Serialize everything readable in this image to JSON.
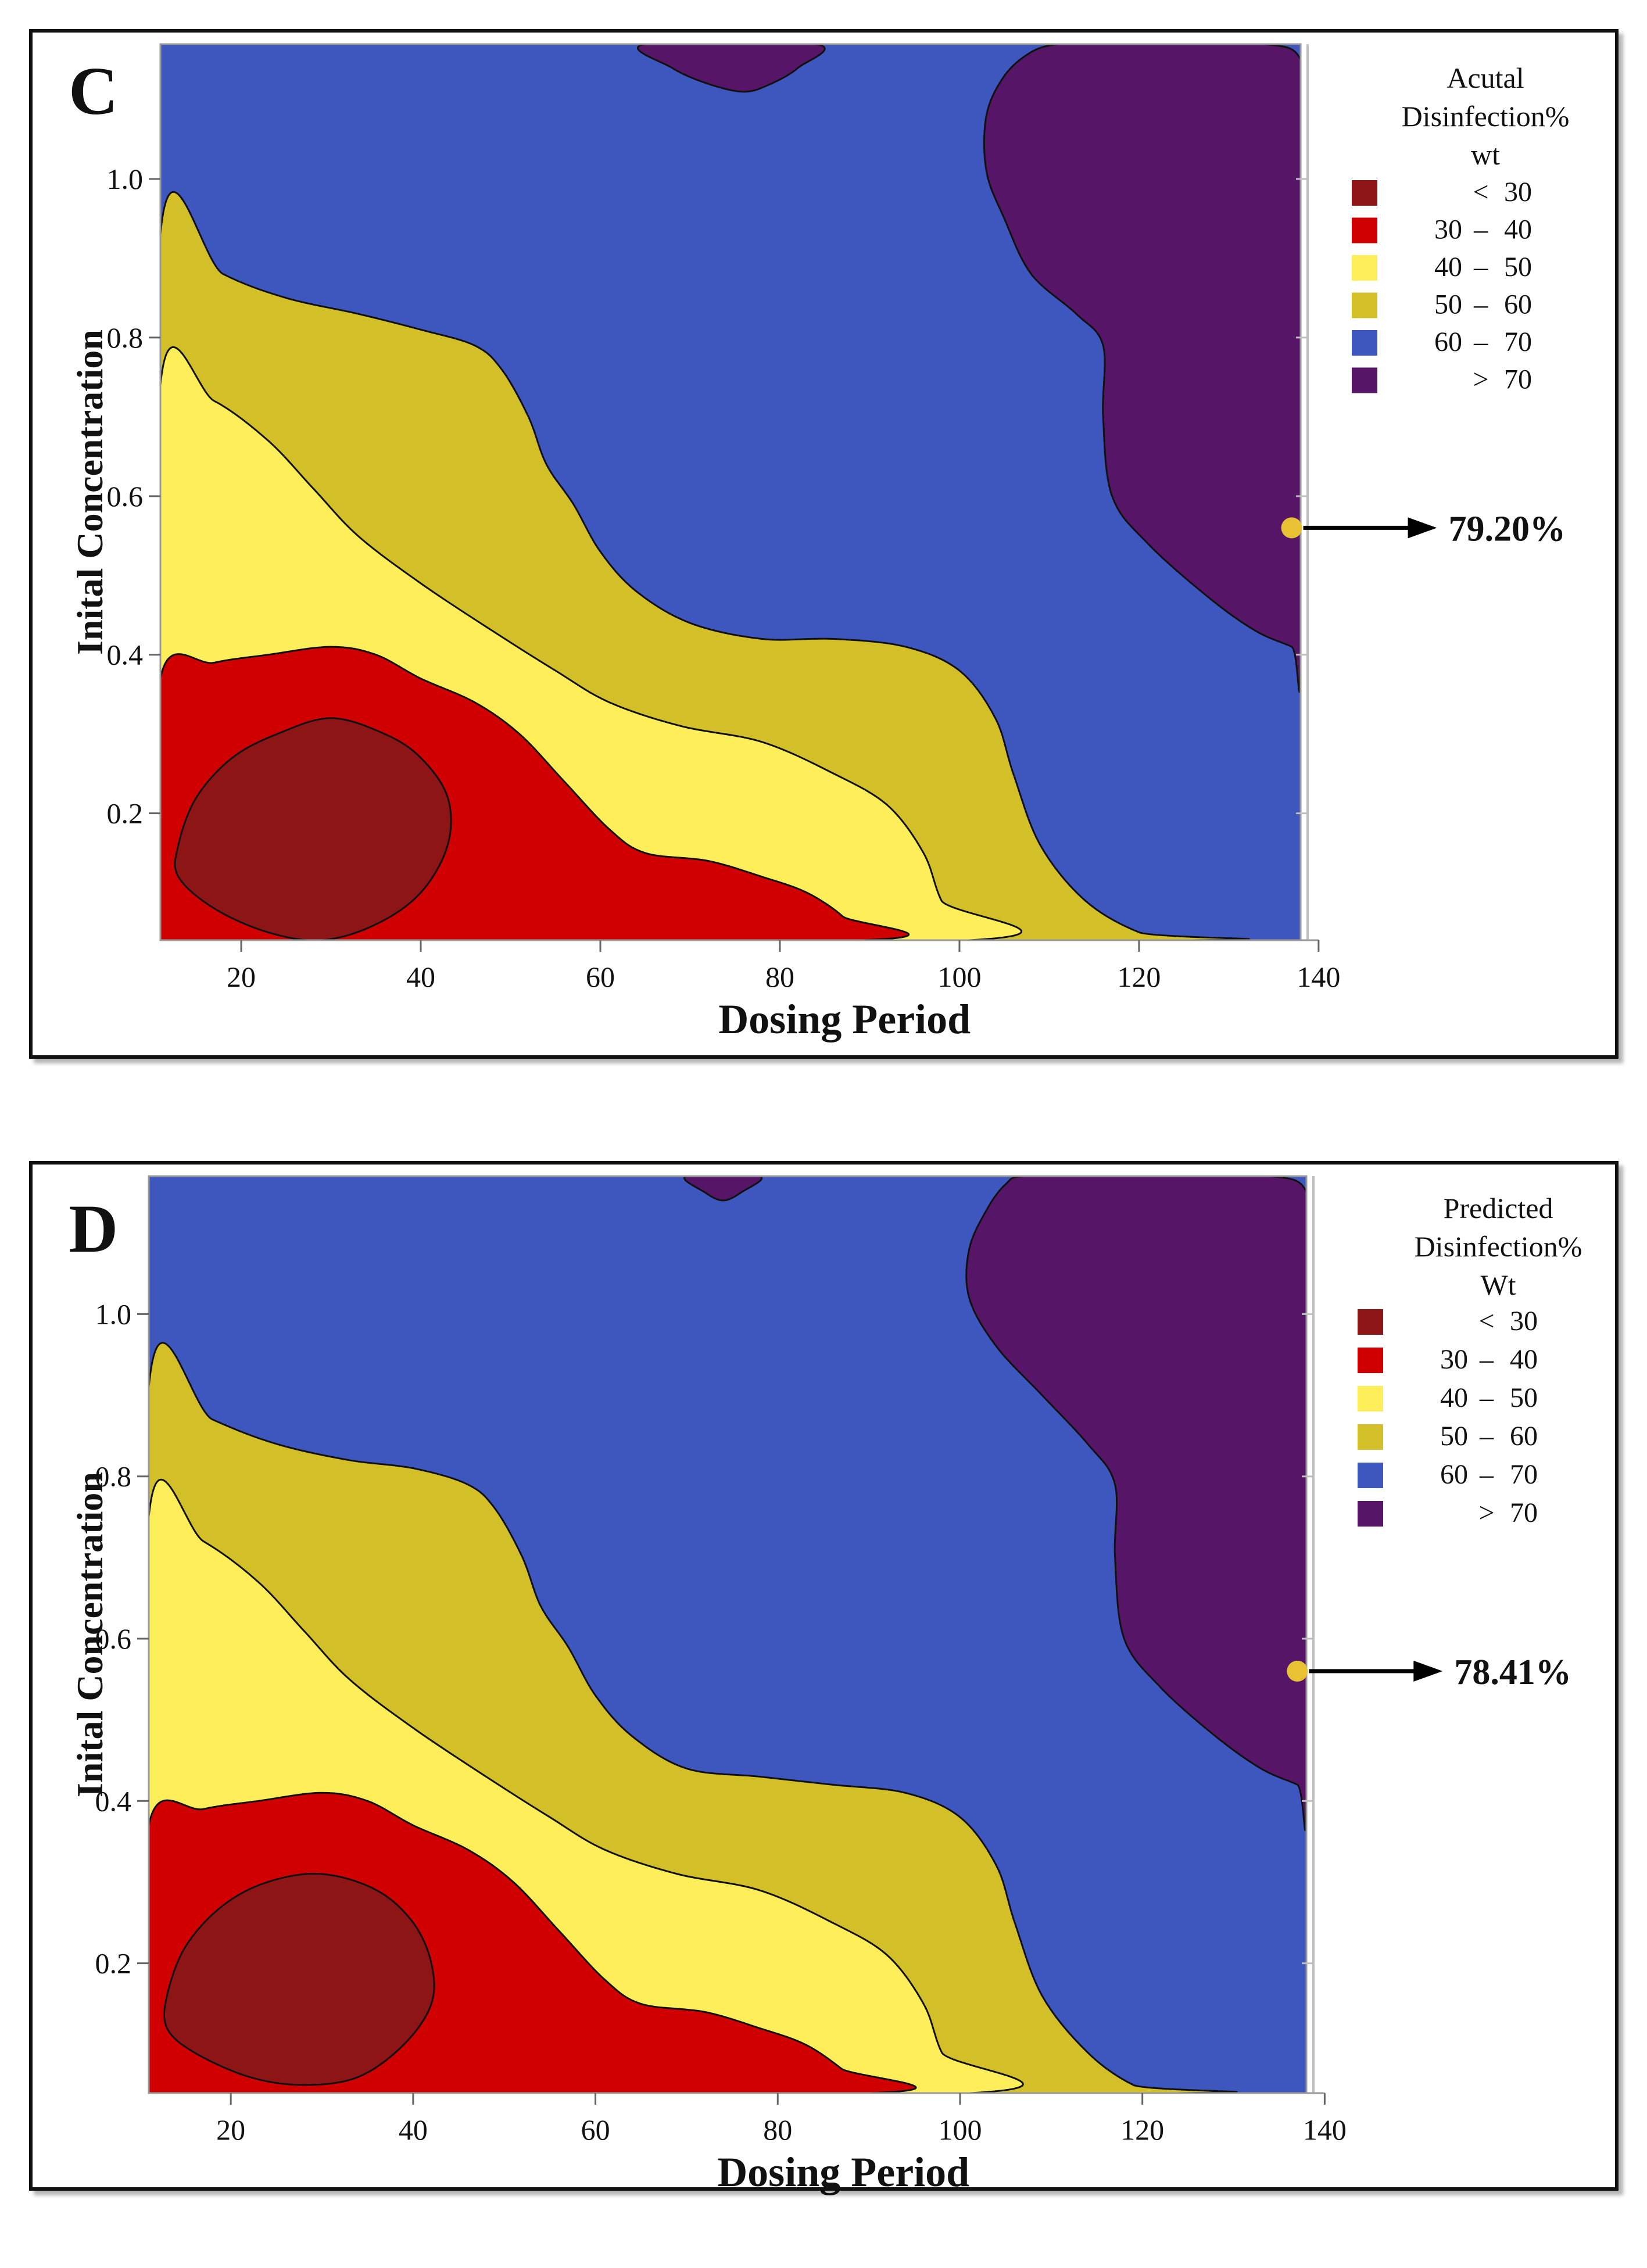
{
  "chart_data": [
    {
      "type": "contour",
      "panel": "C",
      "xlabel": "Dosing Period",
      "ylabel": "Inital Concentration",
      "xlim": [
        11,
        138
      ],
      "ylim": [
        0.04,
        1.17
      ],
      "xticks": [
        20,
        40,
        60,
        80,
        100,
        120,
        140
      ],
      "yticks": [
        0.2,
        0.4,
        0.6,
        0.8,
        1.0
      ],
      "legend": {
        "title": [
          "Acutal",
          "Disinfection%",
          "wt"
        ],
        "placement": "right",
        "levels": [
          {
            "low": "",
            "sep": "<",
            "high": "30",
            "color": "#8E1515"
          },
          {
            "low": "30",
            "sep": "–",
            "high": "40",
            "color": "#D10000"
          },
          {
            "low": "40",
            "sep": "–",
            "high": "50",
            "color": "#FEEF5A"
          },
          {
            "low": "50",
            "sep": "–",
            "high": "60",
            "color": "#D3BF28"
          },
          {
            "low": "60",
            "sep": "–",
            "high": "70",
            "color": "#3D57BF"
          },
          {
            "low": "",
            "sep": ">",
            "high": "70",
            "color": "#571567"
          }
        ]
      },
      "optimum": {
        "x": 137,
        "y": 0.56,
        "label": "79.20%",
        "color": "#E8C232"
      },
      "regions": [
        {
          "name": "gt70-top",
          "color": "#571567",
          "points": [
            [
              65,
              1.17
            ],
            [
              68,
              1.14
            ],
            [
              72,
              1.12
            ],
            [
              76,
              1.11
            ],
            [
              79,
              1.12
            ],
            [
              82,
              1.14
            ],
            [
              84,
              1.17
            ]
          ]
        },
        {
          "name": "gt70-right",
          "color": "#571567",
          "points": [
            [
              111,
              1.17
            ],
            [
              115,
              1.17
            ],
            [
              125,
              1.17
            ],
            [
              134,
              1.17
            ],
            [
              138,
              1.15
            ],
            [
              138,
              1.06
            ],
            [
              138,
              0.4
            ],
            [
              137,
              0.41
            ],
            [
              133,
              0.43
            ],
            [
              128,
              0.47
            ],
            [
              121,
              0.54
            ],
            [
              117,
              0.6
            ],
            [
              116,
              0.7
            ],
            [
              116,
              0.79
            ],
            [
              113,
              0.83
            ],
            [
              108,
              0.88
            ],
            [
              105,
              0.95
            ],
            [
              103,
              1.01
            ],
            [
              103,
              1.08
            ],
            [
              105,
              1.13
            ],
            [
              108,
              1.16
            ]
          ]
        },
        {
          "name": "50-60",
          "color": "#D3BF28",
          "points": [
            [
              11,
              0.93
            ],
            [
              18,
              0.88
            ],
            [
              25,
              0.85
            ],
            [
              33,
              0.83
            ],
            [
              40,
              0.81
            ],
            [
              46,
              0.79
            ],
            [
              49,
              0.76
            ],
            [
              52,
              0.7
            ],
            [
              54,
              0.64
            ],
            [
              57,
              0.59
            ],
            [
              60,
              0.53
            ],
            [
              64,
              0.48
            ],
            [
              70,
              0.44
            ],
            [
              78,
              0.42
            ],
            [
              86,
              0.42
            ],
            [
              94,
              0.41
            ],
            [
              100,
              0.38
            ],
            [
              104,
              0.32
            ],
            [
              106,
              0.25
            ],
            [
              109,
              0.16
            ],
            [
              114,
              0.09
            ],
            [
              120,
              0.05
            ],
            [
              125,
              0.04
            ],
            [
              11,
              0.04
            ]
          ]
        },
        {
          "name": "40-50",
          "color": "#FEEF5A",
          "points": [
            [
              11,
              0.74
            ],
            [
              17,
              0.72
            ],
            [
              23,
              0.67
            ],
            [
              28,
              0.61
            ],
            [
              33,
              0.55
            ],
            [
              40,
              0.49
            ],
            [
              48,
              0.43
            ],
            [
              55,
              0.38
            ],
            [
              61,
              0.34
            ],
            [
              69,
              0.31
            ],
            [
              78,
              0.29
            ],
            [
              86,
              0.25
            ],
            [
              92,
              0.21
            ],
            [
              96,
              0.15
            ],
            [
              98,
              0.09
            ],
            [
              101,
              0.04
            ],
            [
              11,
              0.04
            ]
          ]
        },
        {
          "name": "30-40",
          "color": "#D10000",
          "points": [
            [
              11,
              0.37
            ],
            [
              17,
              0.39
            ],
            [
              23,
              0.4
            ],
            [
              30,
              0.41
            ],
            [
              35,
              0.4
            ],
            [
              40,
              0.37
            ],
            [
              46,
              0.34
            ],
            [
              51,
              0.3
            ],
            [
              56,
              0.24
            ],
            [
              61,
              0.18
            ],
            [
              65,
              0.15
            ],
            [
              72,
              0.14
            ],
            [
              78,
              0.12
            ],
            [
              83,
              0.1
            ],
            [
              87,
              0.07
            ],
            [
              89,
              0.04
            ],
            [
              11,
              0.04
            ]
          ]
        },
        {
          "name": "lt30",
          "color": "#8E1515",
          "points": [
            [
              13,
              0.16
            ],
            [
              15,
              0.22
            ],
            [
              19,
              0.27
            ],
            [
              24,
              0.3
            ],
            [
              30,
              0.32
            ],
            [
              36,
              0.3
            ],
            [
              40,
              0.27
            ],
            [
              43,
              0.22
            ],
            [
              43,
              0.16
            ],
            [
              40,
              0.1
            ],
            [
              35,
              0.06
            ],
            [
              29,
              0.04
            ],
            [
              23,
              0.05
            ],
            [
              17,
              0.08
            ],
            [
              13,
              0.12
            ]
          ]
        }
      ]
    },
    {
      "type": "contour",
      "panel": "D",
      "xlabel": "Dosing Period",
      "ylabel": "Inital Concentration",
      "xlim": [
        11,
        138
      ],
      "ylim": [
        0.04,
        1.17
      ],
      "xticks": [
        20,
        40,
        60,
        80,
        100,
        120,
        140
      ],
      "yticks": [
        0.2,
        0.4,
        0.6,
        0.8,
        1.0
      ],
      "legend": {
        "title": [
          "Predicted",
          "Disinfection%",
          "Wt"
        ],
        "placement": "right",
        "levels": [
          {
            "low": "",
            "sep": "<",
            "high": "30",
            "color": "#8E1515"
          },
          {
            "low": "30",
            "sep": "–",
            "high": "40",
            "color": "#D10000"
          },
          {
            "low": "40",
            "sep": "–",
            "high": "50",
            "color": "#FEEF5A"
          },
          {
            "low": "50",
            "sep": "–",
            "high": "60",
            "color": "#D3BF28"
          },
          {
            "low": "60",
            "sep": "–",
            "high": "70",
            "color": "#3D57BF"
          },
          {
            "low": "",
            "sep": ">",
            "high": "70",
            "color": "#571567"
          }
        ]
      },
      "optimum": {
        "x": 137,
        "y": 0.56,
        "label": "78.41%",
        "color": "#E8C232"
      },
      "regions": [
        {
          "name": "gt70-top",
          "color": "#571567",
          "points": [
            [
              70,
              1.17
            ],
            [
              72,
              1.15
            ],
            [
              74,
              1.14
            ],
            [
              76,
              1.15
            ],
            [
              78,
              1.17
            ]
          ]
        },
        {
          "name": "gt70-right",
          "color": "#571567",
          "points": [
            [
              107,
              1.17
            ],
            [
              115,
              1.17
            ],
            [
              125,
              1.17
            ],
            [
              134,
              1.17
            ],
            [
              138,
              1.15
            ],
            [
              138,
              1.06
            ],
            [
              138,
              0.41
            ],
            [
              137,
              0.42
            ],
            [
              133,
              0.44
            ],
            [
              128,
              0.48
            ],
            [
              122,
              0.54
            ],
            [
              118,
              0.6
            ],
            [
              117,
              0.7
            ],
            [
              117,
              0.79
            ],
            [
              114,
              0.84
            ],
            [
              109,
              0.9
            ],
            [
              104,
              0.96
            ],
            [
              101,
              1.02
            ],
            [
              101,
              1.08
            ],
            [
              103,
              1.13
            ],
            [
              105,
              1.16
            ]
          ]
        },
        {
          "name": "50-60",
          "color": "#D3BF28",
          "points": [
            [
              11,
              0.91
            ],
            [
              18,
              0.87
            ],
            [
              25,
              0.84
            ],
            [
              33,
              0.82
            ],
            [
              40,
              0.81
            ],
            [
              46,
              0.79
            ],
            [
              49,
              0.76
            ],
            [
              52,
              0.7
            ],
            [
              54,
              0.64
            ],
            [
              57,
              0.59
            ],
            [
              60,
              0.53
            ],
            [
              64,
              0.48
            ],
            [
              70,
              0.44
            ],
            [
              78,
              0.43
            ],
            [
              86,
              0.42
            ],
            [
              94,
              0.41
            ],
            [
              100,
              0.38
            ],
            [
              104,
              0.32
            ],
            [
              106,
              0.25
            ],
            [
              109,
              0.16
            ],
            [
              114,
              0.09
            ],
            [
              119,
              0.05
            ],
            [
              123,
              0.04
            ],
            [
              11,
              0.04
            ]
          ]
        },
        {
          "name": "40-50",
          "color": "#FEEF5A",
          "points": [
            [
              11,
              0.75
            ],
            [
              17,
              0.72
            ],
            [
              23,
              0.67
            ],
            [
              28,
              0.61
            ],
            [
              33,
              0.55
            ],
            [
              40,
              0.49
            ],
            [
              48,
              0.43
            ],
            [
              55,
              0.38
            ],
            [
              61,
              0.34
            ],
            [
              69,
              0.31
            ],
            [
              78,
              0.29
            ],
            [
              86,
              0.25
            ],
            [
              92,
              0.21
            ],
            [
              96,
              0.15
            ],
            [
              98,
              0.09
            ],
            [
              101,
              0.04
            ],
            [
              11,
              0.04
            ]
          ]
        },
        {
          "name": "30-40",
          "color": "#D10000",
          "points": [
            [
              11,
              0.37
            ],
            [
              17,
              0.39
            ],
            [
              23,
              0.4
            ],
            [
              30,
              0.41
            ],
            [
              35,
              0.4
            ],
            [
              40,
              0.37
            ],
            [
              46,
              0.34
            ],
            [
              51,
              0.3
            ],
            [
              56,
              0.24
            ],
            [
              61,
              0.18
            ],
            [
              65,
              0.15
            ],
            [
              72,
              0.14
            ],
            [
              78,
              0.12
            ],
            [
              83,
              0.1
            ],
            [
              87,
              0.07
            ],
            [
              90,
              0.04
            ],
            [
              11,
              0.04
            ]
          ]
        },
        {
          "name": "lt30",
          "color": "#8E1515",
          "points": [
            [
              13,
              0.16
            ],
            [
              15,
              0.22
            ],
            [
              19,
              0.27
            ],
            [
              24,
              0.3
            ],
            [
              30,
              0.31
            ],
            [
              36,
              0.29
            ],
            [
              40,
              0.25
            ],
            [
              42,
              0.2
            ],
            [
              42,
              0.15
            ],
            [
              39,
              0.1
            ],
            [
              34,
              0.06
            ],
            [
              28,
              0.05
            ],
            [
              22,
              0.06
            ],
            [
              16,
              0.09
            ],
            [
              13,
              0.12
            ]
          ]
        }
      ]
    }
  ]
}
